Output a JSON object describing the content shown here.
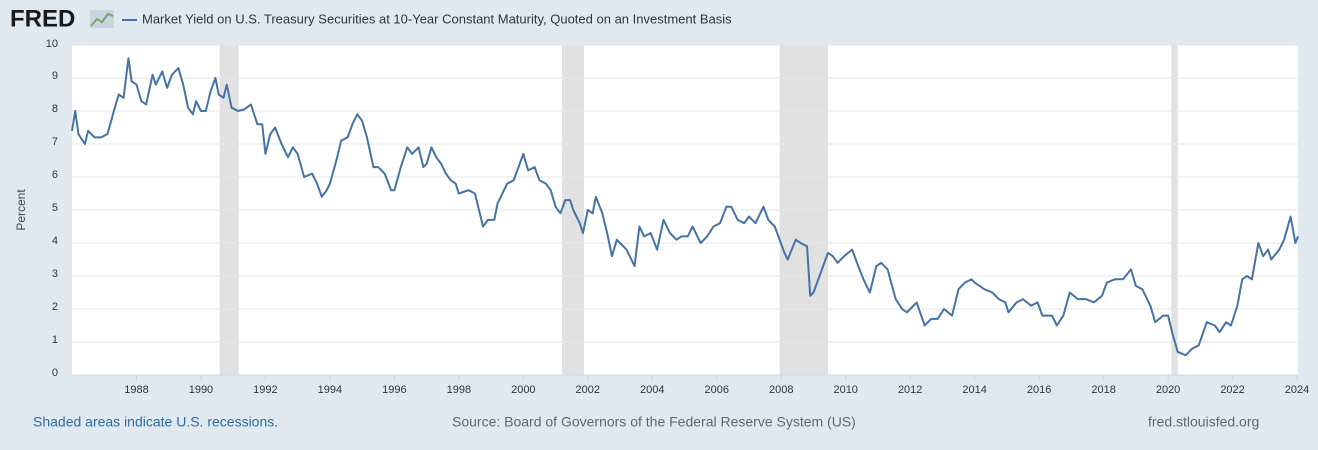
{
  "chart_data": {
    "type": "line",
    "logo": "FRED",
    "y_label": "Percent",
    "note": "Shaded areas indicate U.S. recessions.",
    "source": "Source: Board of Governors of the Federal Reserve System (US)",
    "site": "fred.stlouisfed.org",
    "xlim": [
      1986.0,
      2024.03
    ],
    "xticks": [
      1988,
      1990,
      1992,
      1994,
      1996,
      1998,
      2000,
      2002,
      2004,
      2006,
      2008,
      2010,
      2012,
      2014,
      2016,
      2018,
      2020,
      2022,
      2024
    ],
    "ylim": [
      0,
      10
    ],
    "yticks": [
      0,
      1,
      2,
      3,
      4,
      5,
      6,
      7,
      8,
      9,
      10
    ],
    "grid": true,
    "recession_color": "#e1e1e1",
    "recessions": [
      [
        1990.58,
        1991.17
      ],
      [
        2001.2,
        2001.88
      ],
      [
        2007.95,
        2009.45
      ],
      [
        2020.1,
        2020.3
      ]
    ],
    "x": [
      1986.0,
      1986.1,
      1986.2,
      1986.4,
      1986.5,
      1986.7,
      1986.9,
      1987.1,
      1987.3,
      1987.45,
      1987.6,
      1987.75,
      1987.85,
      1988.0,
      1988.15,
      1988.3,
      1988.5,
      1988.6,
      1988.8,
      1988.95,
      1989.1,
      1989.3,
      1989.45,
      1989.6,
      1989.75,
      1989.85,
      1990.0,
      1990.15,
      1990.3,
      1990.45,
      1990.55,
      1990.7,
      1990.8,
      1990.95,
      1991.15,
      1991.35,
      1991.55,
      1991.75,
      1991.9,
      1992.0,
      1992.15,
      1992.3,
      1992.5,
      1992.7,
      1992.85,
      1993.0,
      1993.2,
      1993.45,
      1993.6,
      1993.75,
      1993.9,
      1994.0,
      1994.2,
      1994.35,
      1994.55,
      1994.7,
      1994.85,
      1995.0,
      1995.15,
      1995.35,
      1995.5,
      1995.7,
      1995.9,
      1996.0,
      1996.2,
      1996.4,
      1996.55,
      1996.75,
      1996.9,
      1997.0,
      1997.15,
      1997.3,
      1997.45,
      1997.6,
      1997.75,
      1997.9,
      1998.0,
      1998.3,
      1998.5,
      1998.75,
      1998.9,
      1999.1,
      1999.2,
      1999.35,
      1999.5,
      1999.7,
      1999.85,
      2000.0,
      2000.15,
      2000.35,
      2000.5,
      2000.7,
      2000.85,
      2001.0,
      2001.15,
      2001.3,
      2001.45,
      2001.55,
      2001.75,
      2001.85,
      2002.0,
      2002.15,
      2002.25,
      2002.45,
      2002.6,
      2002.75,
      2002.9,
      2003.0,
      2003.2,
      2003.45,
      2003.6,
      2003.75,
      2003.95,
      2004.15,
      2004.35,
      2004.55,
      2004.75,
      2004.9,
      2005.1,
      2005.25,
      2005.5,
      2005.7,
      2005.9,
      2006.1,
      2006.3,
      2006.45,
      2006.65,
      2006.85,
      2007.0,
      2007.2,
      2007.45,
      2007.6,
      2007.8,
      2007.95,
      2008.1,
      2008.2,
      2008.45,
      2008.6,
      2008.8,
      2008.9,
      2009.0,
      2009.15,
      2009.3,
      2009.45,
      2009.6,
      2009.75,
      2009.95,
      2010.2,
      2010.35,
      2010.55,
      2010.75,
      2010.95,
      2011.1,
      2011.3,
      2011.55,
      2011.75,
      2011.9,
      2012.0,
      2012.2,
      2012.45,
      2012.65,
      2012.85,
      2013.05,
      2013.3,
      2013.5,
      2013.7,
      2013.9,
      2014.0,
      2014.3,
      2014.55,
      2014.75,
      2014.95,
      2015.05,
      2015.3,
      2015.5,
      2015.75,
      2015.95,
      2016.1,
      2016.4,
      2016.55,
      2016.75,
      2016.95,
      2017.2,
      2017.45,
      2017.7,
      2017.95,
      2018.1,
      2018.35,
      2018.6,
      2018.85,
      2019.0,
      2019.2,
      2019.45,
      2019.6,
      2019.85,
      2020.0,
      2020.15,
      2020.3,
      2020.55,
      2020.75,
      2020.95,
      2021.2,
      2021.45,
      2021.6,
      2021.8,
      2021.95,
      2022.15,
      2022.3,
      2022.45,
      2022.6,
      2022.8,
      2022.95,
      2023.1,
      2023.2,
      2023.45,
      2023.6,
      2023.8,
      2023.95,
      2024.03
    ],
    "series": [
      {
        "name": "Market Yield on U.S. Treasury Securities at 10-Year Constant Maturity, Quoted on an Investment Basis",
        "color": "#4572a7",
        "values": [
          7.4,
          8.0,
          7.3,
          7.0,
          7.4,
          7.2,
          7.2,
          7.3,
          8.0,
          8.5,
          8.4,
          9.6,
          8.9,
          8.8,
          8.3,
          8.2,
          9.1,
          8.8,
          9.2,
          8.7,
          9.1,
          9.3,
          8.8,
          8.1,
          7.9,
          8.3,
          8.0,
          8.0,
          8.6,
          9.0,
          8.5,
          8.4,
          8.8,
          8.1,
          8.0,
          8.05,
          8.2,
          7.6,
          7.6,
          6.7,
          7.3,
          7.5,
          7.0,
          6.6,
          6.9,
          6.7,
          6.0,
          6.1,
          5.8,
          5.4,
          5.6,
          5.8,
          6.5,
          7.1,
          7.2,
          7.6,
          7.9,
          7.7,
          7.2,
          6.3,
          6.3,
          6.1,
          5.6,
          5.6,
          6.3,
          6.9,
          6.7,
          6.9,
          6.3,
          6.4,
          6.9,
          6.6,
          6.4,
          6.1,
          5.9,
          5.8,
          5.5,
          5.6,
          5.5,
          4.5,
          4.7,
          4.7,
          5.2,
          5.5,
          5.8,
          5.9,
          6.3,
          6.7,
          6.2,
          6.3,
          5.9,
          5.8,
          5.6,
          5.1,
          4.9,
          5.3,
          5.3,
          5.0,
          4.6,
          4.3,
          5.0,
          4.9,
          5.4,
          4.9,
          4.3,
          3.6,
          4.1,
          4.0,
          3.8,
          3.3,
          4.5,
          4.2,
          4.3,
          3.8,
          4.7,
          4.3,
          4.1,
          4.2,
          4.2,
          4.5,
          4.0,
          4.2,
          4.5,
          4.6,
          5.1,
          5.1,
          4.7,
          4.6,
          4.8,
          4.6,
          5.1,
          4.7,
          4.5,
          4.1,
          3.7,
          3.5,
          4.1,
          4.0,
          3.9,
          2.4,
          2.5,
          2.9,
          3.3,
          3.7,
          3.6,
          3.4,
          3.6,
          3.8,
          3.4,
          2.9,
          2.5,
          3.3,
          3.4,
          3.2,
          2.3,
          2.0,
          1.9,
          2.0,
          2.2,
          1.5,
          1.7,
          1.7,
          2.0,
          1.8,
          2.6,
          2.8,
          2.9,
          2.8,
          2.6,
          2.5,
          2.3,
          2.2,
          1.9,
          2.2,
          2.3,
          2.1,
          2.2,
          1.8,
          1.8,
          1.5,
          1.8,
          2.5,
          2.3,
          2.3,
          2.2,
          2.4,
          2.8,
          2.9,
          2.9,
          3.2,
          2.7,
          2.6,
          2.1,
          1.6,
          1.8,
          1.8,
          1.2,
          0.7,
          0.6,
          0.8,
          0.9,
          1.6,
          1.5,
          1.3,
          1.6,
          1.5,
          2.1,
          2.9,
          3.0,
          2.9,
          4.0,
          3.6,
          3.8,
          3.5,
          3.8,
          4.1,
          4.8,
          4.0,
          4.2
        ]
      }
    ]
  }
}
